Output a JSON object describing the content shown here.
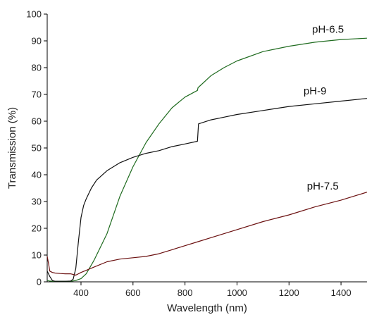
{
  "chart_data": {
    "type": "line",
    "title": "",
    "xlabel": "Wavelength (nm)",
    "ylabel": "Transmission (%)",
    "xlim": [
      270,
      1500
    ],
    "ylim": [
      0,
      100
    ],
    "xticks": [
      400,
      600,
      800,
      1000,
      1200,
      1400
    ],
    "yticks": [
      0,
      10,
      20,
      30,
      40,
      50,
      60,
      70,
      80,
      90,
      100
    ],
    "grid": false,
    "legend": "none (series labels placed at right end of curves)",
    "series": [
      {
        "name": "pH-6.5",
        "color": "#1f6b1f",
        "label_anchor": [
          1350,
          93
        ],
        "x": [
          270,
          280,
          290,
          300,
          320,
          340,
          360,
          380,
          400,
          420,
          450,
          500,
          550,
          600,
          650,
          700,
          750,
          800,
          848,
          850,
          900,
          950,
          1000,
          1100,
          1200,
          1300,
          1400,
          1500
        ],
        "y": [
          0.5,
          0.3,
          0.2,
          0.2,
          0.2,
          0.2,
          0.2,
          0.5,
          1.2,
          3,
          8,
          18,
          32,
          43,
          52,
          59,
          65,
          69,
          71.5,
          72.5,
          77,
          80,
          82.5,
          86,
          88,
          89.5,
          90.5,
          91
        ]
      },
      {
        "name": "pH-9",
        "color": "#111111",
        "label_anchor": [
          1300,
          70
        ],
        "x": [
          270,
          280,
          290,
          300,
          320,
          340,
          360,
          370,
          380,
          390,
          400,
          410,
          420,
          440,
          460,
          500,
          550,
          600,
          650,
          700,
          750,
          800,
          848,
          852,
          900,
          950,
          1000,
          1100,
          1200,
          1300,
          1400,
          1500
        ],
        "y": [
          4,
          2,
          0.5,
          0.2,
          0.2,
          0.2,
          0.3,
          1,
          5,
          15,
          24,
          28.5,
          31,
          35,
          38,
          41.5,
          44.5,
          46.5,
          48,
          49,
          50.5,
          51.5,
          52.5,
          59,
          60.5,
          61.5,
          62.5,
          64,
          65.5,
          66.5,
          67.5,
          68.5
        ]
      },
      {
        "name": "pH-7.5",
        "color": "#6b1010",
        "label_anchor": [
          1330,
          34.5
        ],
        "x": [
          270,
          275,
          280,
          290,
          300,
          320,
          340,
          360,
          380,
          400,
          450,
          500,
          550,
          600,
          650,
          700,
          750,
          800,
          850,
          900,
          1000,
          1100,
          1200,
          1300,
          1400,
          1500
        ],
        "y": [
          9.5,
          7,
          4,
          3.5,
          3.3,
          3.1,
          3,
          3,
          2.5,
          3.5,
          5.5,
          7.5,
          8.5,
          9,
          9.5,
          10.5,
          12,
          13.5,
          15,
          16.5,
          19.5,
          22.5,
          25,
          28,
          30.5,
          33.5
        ]
      }
    ]
  }
}
